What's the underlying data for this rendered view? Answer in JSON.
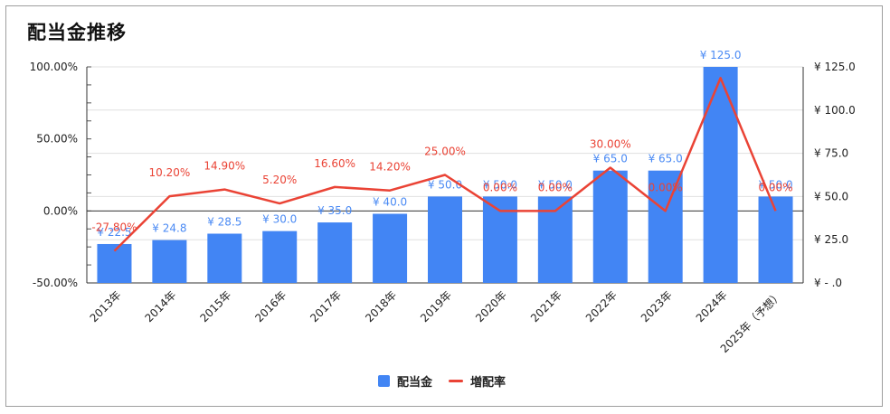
{
  "chart_data": {
    "type": "bar",
    "title": "配当金推移",
    "categories": [
      "2013年",
      "2014年",
      "2015年",
      "2016年",
      "2017年",
      "2018年",
      "2019年",
      "2020年",
      "2021年",
      "2022年",
      "2023年",
      "2024年",
      "2025年（予想）"
    ],
    "series": [
      {
        "name": "配当金",
        "axis": "right",
        "values": [
          22.5,
          24.8,
          28.5,
          30.0,
          35.0,
          40.0,
          50.0,
          50.0,
          50.0,
          65.0,
          65.0,
          125.0,
          50.0
        ],
        "labels": [
          "¥ 22.5",
          "¥ 24.8",
          "¥ 28.5",
          "¥ 30.0",
          "¥ 35.0",
          "¥ 40.0",
          "¥ 50.0",
          "¥ 50.0",
          "¥ 50.0",
          "¥ 65.0",
          "¥ 65.0",
          "¥ 125.0",
          "¥ 50.0"
        ],
        "color": "#4285f4"
      },
      {
        "name": "増配率",
        "type": "line",
        "axis": "left",
        "values": [
          -27.8,
          10.2,
          14.9,
          5.2,
          16.6,
          14.2,
          25.0,
          0.0,
          0.0,
          30.0,
          0.0,
          92.31,
          0.0
        ],
        "labels": [
          "-27.80%",
          "10.20%",
          "14.90%",
          "5.20%",
          "16.60%",
          "14.20%",
          "25.00%",
          "0.00%",
          "0.00%",
          "30.00%",
          "0.00%",
          "",
          "0.00%"
        ],
        "color": "#ea4335"
      }
    ],
    "left_axis": {
      "min": -50,
      "max": 100,
      "ticks": [
        "100.00%",
        "50.00%",
        "0.00%",
        "-50.00%"
      ],
      "tick_values": [
        100,
        50,
        0,
        -50
      ]
    },
    "right_axis": {
      "min": 0,
      "max": 125,
      "ticks": [
        "¥ 125.0",
        "¥ 100.0",
        "¥ 75.0",
        "¥ 50.0",
        "¥ 25.0",
        "¥ -  .0"
      ],
      "tick_values": [
        125,
        100,
        75,
        50,
        25,
        0
      ]
    },
    "grid": true,
    "legend_position": "bottom"
  }
}
